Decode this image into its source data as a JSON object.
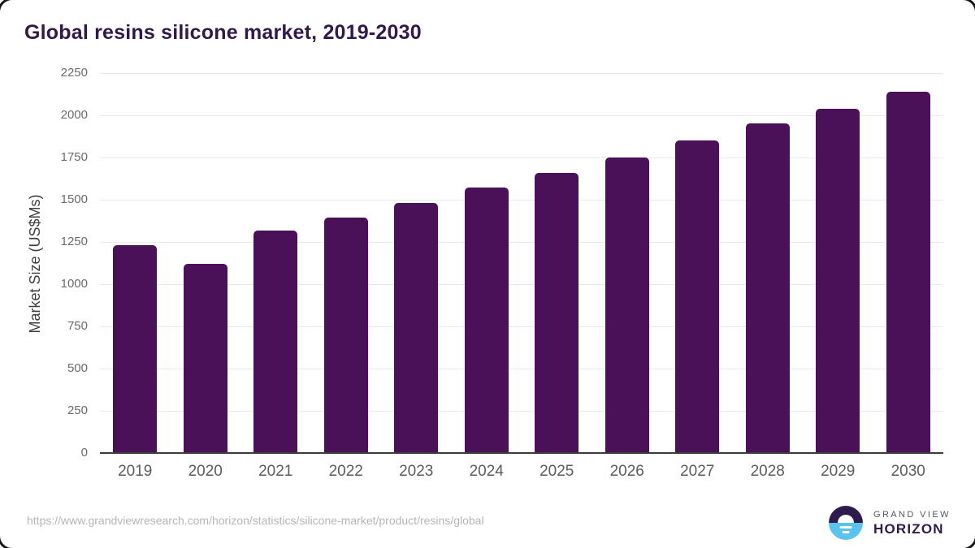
{
  "title": "Global resins silicone market, 2019-2030",
  "source_url": "https://www.grandviewresearch.com/horizon/statistics/silicone-market/product/resins/global",
  "logo": {
    "top_text": "GRAND VIEW",
    "bottom_text": "HORIZON"
  },
  "colors": {
    "bar": "#4a1159",
    "title": "#31194a",
    "gridline": "#e9e9e9",
    "axis_line": "#3c3c3c",
    "y_tick_label": "#6b6b6b",
    "x_tick_label": "#5c5c5c",
    "url_text": "#b5b5b5",
    "logo_dark": "#2d1b4e",
    "logo_blue": "#5ac3ee"
  },
  "chart_data": {
    "type": "bar",
    "title": "Global resins silicone market, 2019-2030",
    "categories": [
      "2019",
      "2020",
      "2021",
      "2022",
      "2023",
      "2024",
      "2025",
      "2026",
      "2027",
      "2028",
      "2029",
      "2030"
    ],
    "values": [
      1230,
      1120,
      1315,
      1395,
      1480,
      1570,
      1660,
      1750,
      1850,
      1950,
      2040,
      2140
    ],
    "xlabel": "",
    "ylabel": "Market Size (US$Ms)",
    "ylim": [
      0,
      2250
    ],
    "yticks": [
      0,
      250,
      500,
      750,
      1000,
      1250,
      1500,
      1750,
      2000,
      2250
    ],
    "grid": true,
    "legend": false,
    "bar_color": "#4a1159"
  }
}
